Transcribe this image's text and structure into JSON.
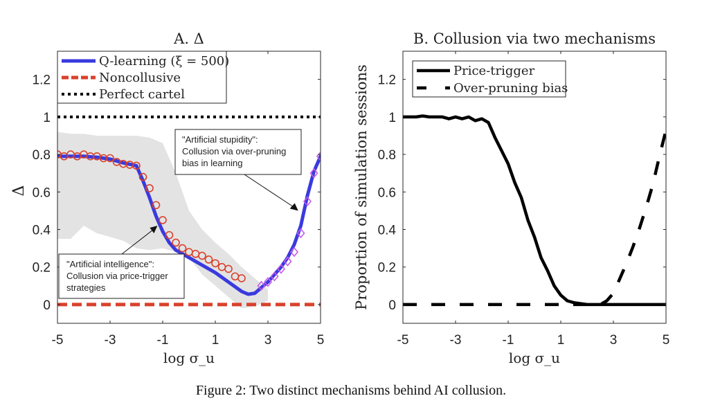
{
  "caption": "Figure 2: Two distinct mechanisms behind AI collusion.",
  "chart_data": [
    {
      "type": "line",
      "title": "A. Δ",
      "xlabel": "log σ_u",
      "ylabel": "Δ",
      "xlim": [
        -5,
        5
      ],
      "ylim": [
        -0.1,
        1.35
      ],
      "xticks": [
        -5,
        -3,
        -1,
        1,
        3,
        5
      ],
      "xtick_labels": [
        "-5",
        "-3",
        "-1",
        "1",
        "3",
        "5"
      ],
      "yticks": [
        0,
        0.2,
        0.4,
        0.6,
        0.8,
        1,
        1.2
      ],
      "ytick_labels": [
        "0",
        "0.2",
        "0.4",
        "0.6",
        "0.8",
        "1",
        "1.2"
      ],
      "grid": false,
      "legend_position": "top-left",
      "legend": [
        "Q-learning (ξ = 500)",
        "Noncollusive",
        "Perfect cartel"
      ],
      "colors": {
        "qlearning": "#3a3adf",
        "noncollusive": "#d9412b",
        "cartel": "#000000",
        "band": "#e3e3e3",
        "circles": "#d9412b",
        "diamonds": "#c45ce8"
      },
      "series": [
        {
          "name": "Q-learning (ξ = 500)",
          "style": "solid",
          "x": [
            -5,
            -4.5,
            -4,
            -3.5,
            -3,
            -2.5,
            -2,
            -1.75,
            -1.5,
            -1.25,
            -1,
            -0.75,
            -0.5,
            0,
            0.5,
            1,
            1.5,
            2,
            2.25,
            2.5,
            2.75,
            3,
            3.25,
            3.5,
            3.75,
            4,
            4.25,
            4.5,
            4.75,
            5
          ],
          "y": [
            0.79,
            0.79,
            0.79,
            0.785,
            0.775,
            0.755,
            0.74,
            0.66,
            0.57,
            0.47,
            0.39,
            0.33,
            0.29,
            0.25,
            0.21,
            0.17,
            0.12,
            0.07,
            0.055,
            0.06,
            0.09,
            0.12,
            0.16,
            0.2,
            0.25,
            0.32,
            0.42,
            0.58,
            0.71,
            0.79
          ]
        },
        {
          "name": "Noncollusive",
          "style": "dashed",
          "x": [
            -5,
            5
          ],
          "y": [
            0,
            0
          ]
        },
        {
          "name": "Perfect cartel",
          "style": "dotted",
          "x": [
            -5,
            5
          ],
          "y": [
            1,
            1
          ]
        },
        {
          "name": "Price-trigger markers",
          "style": "circles",
          "x": [
            -5,
            -4.75,
            -4.5,
            -4.25,
            -4,
            -3.75,
            -3.5,
            -3.25,
            -3,
            -2.75,
            -2.5,
            -2.25,
            -2,
            -1.75,
            -1.5,
            -1.25,
            -1,
            -0.75,
            -0.5,
            -0.25,
            0,
            0.25,
            0.5,
            0.75,
            1,
            1.25,
            1.5,
            1.75,
            2
          ],
          "y": [
            0.8,
            0.79,
            0.8,
            0.79,
            0.8,
            0.79,
            0.79,
            0.78,
            0.78,
            0.76,
            0.75,
            0.745,
            0.74,
            0.68,
            0.62,
            0.53,
            0.45,
            0.37,
            0.33,
            0.3,
            0.28,
            0.27,
            0.26,
            0.24,
            0.22,
            0.2,
            0.19,
            0.15,
            0.14
          ]
        },
        {
          "name": "Over-pruning markers",
          "style": "diamonds",
          "x": [
            2.75,
            3,
            3.25,
            3.5,
            3.75,
            4,
            4.25,
            4.5,
            4.75,
            5
          ],
          "y": [
            0.1,
            0.12,
            0.15,
            0.19,
            0.23,
            0.28,
            0.38,
            0.55,
            0.7,
            0.79
          ]
        }
      ],
      "band": {
        "x": [
          -5,
          -4.5,
          -4,
          -3.5,
          -3,
          -2.5,
          -2,
          -1.5,
          -1,
          -0.5,
          0,
          0.5,
          1,
          1.5,
          2,
          2.5,
          3
        ],
        "upper": [
          0.92,
          0.91,
          0.91,
          0.9,
          0.9,
          0.9,
          0.9,
          0.89,
          0.86,
          0.7,
          0.5,
          0.4,
          0.33,
          0.27,
          0.2,
          0.14,
          0.08
        ],
        "lower": [
          0.35,
          0.35,
          0.42,
          0.38,
          0.36,
          0.34,
          0.3,
          0.29,
          0.3,
          0.28,
          0.25,
          0.16,
          0.1,
          0.04,
          -0.02,
          -0.01,
          0.02
        ]
      },
      "annotations": [
        {
          "text": [
            "\"Artificial stupidity\":",
            "Collusion via over-pruning",
            "bias in learning"
          ],
          "arrow_to": [
            4.15,
            0.5
          ]
        },
        {
          "text": [
            "\"Artificial intelligence\":",
            "Collusion via price-trigger",
            "strategies"
          ],
          "arrow_to": [
            -1.2,
            0.42
          ]
        }
      ]
    },
    {
      "type": "line",
      "title": "B. Collusion via two mechanisms",
      "xlabel": "log σ_u",
      "ylabel": "Proportion of simulation sessions",
      "xlim": [
        -5,
        5
      ],
      "ylim": [
        -0.1,
        1.35
      ],
      "xticks": [
        -5,
        -3,
        -1,
        1,
        3,
        5
      ],
      "xtick_labels": [
        "-5",
        "-3",
        "-1",
        "1",
        "3",
        "5"
      ],
      "yticks": [
        0,
        0.2,
        0.4,
        0.6,
        0.8,
        1,
        1.2
      ],
      "ytick_labels": [
        "0",
        "0.2",
        "0.4",
        "0.6",
        "0.8",
        "1",
        "1.2"
      ],
      "grid": false,
      "legend_position": "top-left",
      "legend": [
        "Price-trigger",
        "Over-pruning bias"
      ],
      "series": [
        {
          "name": "Price-trigger",
          "style": "solid",
          "x": [
            -5,
            -4.5,
            -4.25,
            -4,
            -3.5,
            -3.25,
            -3,
            -2.75,
            -2.5,
            -2.25,
            -2,
            -1.75,
            -1.5,
            -1.25,
            -1,
            -0.75,
            -0.5,
            -0.25,
            0,
            0.25,
            0.5,
            0.75,
            1,
            1.25,
            1.5,
            2,
            2.5,
            3,
            5
          ],
          "y": [
            1,
            1,
            1.005,
            1,
            1,
            0.99,
            1,
            0.99,
            1,
            0.98,
            0.99,
            0.97,
            0.89,
            0.82,
            0.75,
            0.65,
            0.57,
            0.45,
            0.36,
            0.25,
            0.18,
            0.1,
            0.05,
            0.02,
            0.01,
            0,
            0,
            0,
            0
          ]
        },
        {
          "name": "Over-pruning bias",
          "style": "dashed",
          "x": [
            -5,
            0.9,
            1.5,
            2,
            2.5,
            2.75,
            3,
            3.25,
            3.5,
            3.75,
            4,
            4.25,
            4.5,
            4.75,
            5
          ],
          "y": [
            0,
            0,
            0,
            0,
            0,
            0.02,
            0.06,
            0.14,
            0.22,
            0.31,
            0.41,
            0.52,
            0.64,
            0.79,
            0.93
          ]
        }
      ]
    }
  ]
}
